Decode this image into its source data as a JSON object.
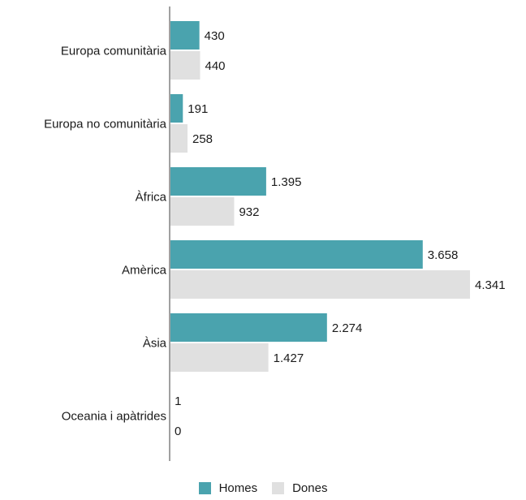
{
  "chart_data": {
    "type": "bar",
    "orientation": "horizontal",
    "categories": [
      "Europa comunitària",
      "Europa no comunitària",
      "Àfrica",
      "Amèrica",
      "Àsia",
      "Oceania i apàtrides"
    ],
    "series": [
      {
        "name": "Homes",
        "color": "#4aa3ae",
        "values": [
          430,
          191,
          1395,
          3658,
          2274,
          1
        ],
        "labels": [
          "430",
          "191",
          "1.395",
          "3.658",
          "2.274",
          "1"
        ]
      },
      {
        "name": "Dones",
        "color": "#e0e0e0",
        "values": [
          440,
          258,
          932,
          4341,
          1427,
          0
        ],
        "labels": [
          "440",
          "258",
          "932",
          "4.341",
          "1.427",
          "0"
        ]
      }
    ],
    "xlim": [
      0,
      4341
    ],
    "grid": false,
    "legend_position": "bottom-center",
    "axis_color": "#a0a0a0"
  }
}
